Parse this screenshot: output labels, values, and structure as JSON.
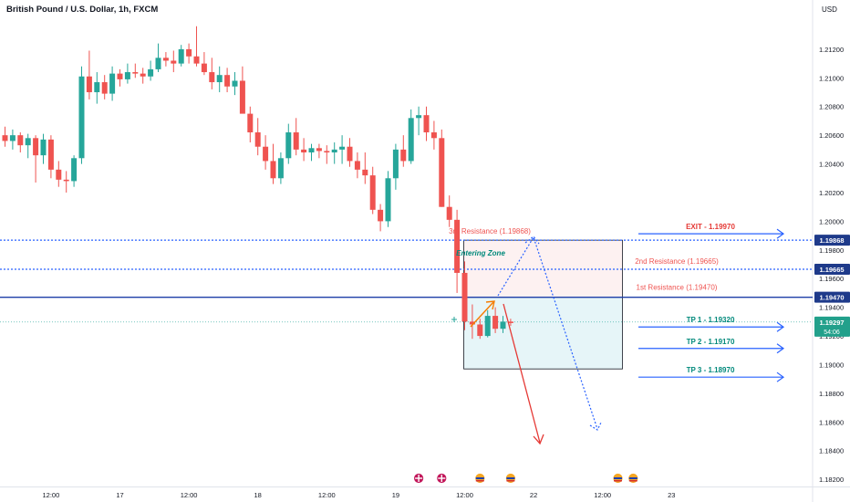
{
  "header": {
    "title": "British Pound / U.S. Dollar, 1h, FXCM",
    "currency": "USD"
  },
  "chart_data": {
    "type": "candlestick",
    "symbol": "British Pound / U.S. Dollar",
    "interval": "1h",
    "source": "FXCM",
    "ylim": [
      1.1815,
      1.214
    ],
    "y_ticks": [
      "1.21200",
      "1.21000",
      "1.20800",
      "1.20600",
      "1.20400",
      "1.20200",
      "1.20000",
      "1.19800",
      "1.19600",
      "1.19400",
      "1.19200",
      "1.19000",
      "1.18800",
      "1.18600",
      "1.18400",
      "1.18200"
    ],
    "x_ticks": [
      {
        "label": "12:00",
        "bar": 6
      },
      {
        "label": "17",
        "bar": 15
      },
      {
        "label": "12:00",
        "bar": 24
      },
      {
        "label": "18",
        "bar": 33
      },
      {
        "label": "12:00",
        "bar": 42
      },
      {
        "label": "19",
        "bar": 51
      },
      {
        "label": "12:00",
        "bar": 60
      },
      {
        "label": "22",
        "bar": 69
      },
      {
        "label": "12:00",
        "bar": 78
      },
      {
        "label": "23",
        "bar": 87
      }
    ],
    "candles": [
      [
        1.206,
        1.2066,
        1.2052,
        1.2056
      ],
      [
        1.2056,
        1.2064,
        1.205,
        1.206
      ],
      [
        1.206,
        1.2062,
        1.2048,
        1.2053
      ],
      [
        1.2053,
        1.2061,
        1.2044,
        1.2058
      ],
      [
        1.2058,
        1.206,
        1.2027,
        1.2046
      ],
      [
        1.2046,
        1.2061,
        1.204,
        1.2057
      ],
      [
        1.2057,
        1.206,
        1.203,
        1.2036
      ],
      [
        1.2036,
        1.2042,
        1.2024,
        1.2029
      ],
      [
        1.2029,
        1.2035,
        1.202,
        1.2028
      ],
      [
        1.2028,
        1.2046,
        1.2024,
        1.2044
      ],
      [
        1.2044,
        1.2108,
        1.204,
        1.2101
      ],
      [
        1.2101,
        1.2119,
        1.2085,
        1.209
      ],
      [
        1.209,
        1.2104,
        1.2082,
        1.2097
      ],
      [
        1.2097,
        1.2102,
        1.2085,
        1.2089
      ],
      [
        1.2089,
        1.2108,
        1.2084,
        1.2103
      ],
      [
        1.2103,
        1.2106,
        1.2094,
        1.2099
      ],
      [
        1.2099,
        1.211,
        1.2096,
        1.2104
      ],
      [
        1.2104,
        1.211,
        1.21,
        1.2103
      ],
      [
        1.2103,
        1.2107,
        1.2096,
        1.2101
      ],
      [
        1.2101,
        1.2112,
        1.2098,
        1.2106
      ],
      [
        1.2106,
        1.2124,
        1.2104,
        1.2114
      ],
      [
        1.2114,
        1.2118,
        1.2108,
        1.2112
      ],
      [
        1.2112,
        1.2119,
        1.2104,
        1.211
      ],
      [
        1.211,
        1.2123,
        1.2108,
        1.212
      ],
      [
        1.212,
        1.2124,
        1.211,
        1.2115
      ],
      [
        1.2115,
        1.2136,
        1.2108,
        1.211
      ],
      [
        1.211,
        1.2118,
        1.2102,
        1.2104
      ],
      [
        1.2104,
        1.2114,
        1.2092,
        1.2097
      ],
      [
        1.2097,
        1.2108,
        1.209,
        1.2102
      ],
      [
        1.2102,
        1.2107,
        1.209,
        1.2094
      ],
      [
        1.2094,
        1.2104,
        1.2088,
        1.2098
      ],
      [
        1.2098,
        1.2108,
        1.2076,
        1.2075
      ],
      [
        1.2075,
        1.208,
        1.2055,
        1.2062
      ],
      [
        1.2062,
        1.2072,
        1.2046,
        1.2052
      ],
      [
        1.2052,
        1.206,
        1.2036,
        1.2042
      ],
      [
        1.2042,
        1.2054,
        1.2026,
        1.203
      ],
      [
        1.203,
        1.2048,
        1.2026,
        1.2044
      ],
      [
        1.2044,
        1.2068,
        1.204,
        1.2062
      ],
      [
        1.2062,
        1.2072,
        1.2046,
        1.205
      ],
      [
        1.205,
        1.2058,
        1.2042,
        1.2048
      ],
      [
        1.2048,
        1.2054,
        1.2042,
        1.2051
      ],
      [
        1.2051,
        1.2054,
        1.2044,
        1.2049
      ],
      [
        1.2049,
        1.2053,
        1.204,
        1.2048
      ],
      [
        1.2048,
        1.2055,
        1.204,
        1.205
      ],
      [
        1.205,
        1.206,
        1.204,
        1.2052
      ],
      [
        1.2052,
        1.2058,
        1.2038,
        1.2042
      ],
      [
        1.2042,
        1.2048,
        1.203,
        1.2036
      ],
      [
        1.2036,
        1.2048,
        1.2026,
        1.2032
      ],
      [
        1.2032,
        1.2038,
        1.2005,
        1.2008
      ],
      [
        1.2008,
        1.2012,
        1.1993,
        1.2
      ],
      [
        1.2,
        1.2035,
        1.1996,
        1.203
      ],
      [
        1.203,
        1.2054,
        1.2022,
        1.205
      ],
      [
        1.205,
        1.206,
        1.2038,
        1.2042
      ],
      [
        1.2042,
        1.2078,
        1.204,
        1.2072
      ],
      [
        1.2072,
        1.208,
        1.206,
        1.2074
      ],
      [
        1.2074,
        1.208,
        1.2056,
        1.2062
      ],
      [
        1.2062,
        1.207,
        1.205,
        1.2058
      ],
      [
        1.2058,
        1.2064,
        1.201,
        1.201
      ],
      [
        1.201,
        1.2018,
        1.1996,
        1.2001
      ],
      [
        1.2001,
        1.2008,
        1.195,
        1.1964
      ],
      [
        1.1964,
        1.1972,
        1.1924,
        1.193
      ],
      [
        1.193,
        1.1942,
        1.1918,
        1.1928
      ],
      [
        1.1928,
        1.1932,
        1.1918,
        1.192
      ],
      [
        1.192,
        1.1938,
        1.1919,
        1.1934
      ],
      [
        1.1934,
        1.194,
        1.1922,
        1.1925
      ],
      [
        1.1925,
        1.1934,
        1.1922,
        1.193
      ],
      [
        1.193,
        1.1932,
        1.1927,
        1.1929
      ]
    ],
    "levels": [
      {
        "name": "1.19868",
        "value": 1.19868,
        "style": "dotted"
      },
      {
        "name": "1.19665",
        "value": 1.19665,
        "style": "dotted"
      },
      {
        "name": "1.19470",
        "value": 1.1947,
        "style": "solid"
      },
      {
        "name": "1.19297",
        "value": 1.19297,
        "style": "current"
      }
    ],
    "axis_badges": {
      "r3": "1.19868",
      "r2": "1.19665",
      "r1": "1.19470",
      "current": "1.19297",
      "countdown": "54:06"
    },
    "zones": {
      "sell_top": 1.19868,
      "sell_bottom": 1.1947,
      "buy_bottom": 1.1897
    },
    "annotations": {
      "r3": "3rd Resistance (1.19868)",
      "r2": "2nd Resistance (1.19665)",
      "r1": "1st Resistance (1.19470)",
      "zone": "Entering Zone",
      "exit": "EXIT - 1.19970",
      "tp1": "TP 1 - 1.19320",
      "tp2": "TP 2 - 1.19170",
      "tp3": "TP 3 - 1.18970"
    },
    "annotation_values": {
      "exit": 1.1997,
      "tp1": 1.1932,
      "tp2": 1.1917,
      "tp3": 1.1897
    },
    "colors": {
      "up": "#26a69a",
      "down": "#ef5350",
      "level_dotted": "#2962ff",
      "level_solid": "#1e3fa8",
      "current": "#26a69a",
      "sell_zone_fill": "#fdf1f1",
      "buy_zone_fill": "#e6f5f8",
      "resistance_text": "#ef5350",
      "exit_text": "#e53935",
      "tp_text": "#00897b",
      "zone_text": "#00897b",
      "arrow_blue": "#2962ff",
      "arrow_orange": "#f57c00",
      "arrow_red": "#e53935"
    },
    "event_icons": [
      {
        "name": "uk-flag-icon",
        "bar": 54
      },
      {
        "name": "uk-flag-icon",
        "bar": 57
      },
      {
        "name": "us-flag-icon",
        "bar": 62
      },
      {
        "name": "us-flag-icon",
        "bar": 66
      },
      {
        "name": "us-flag-icon",
        "bar": 80
      },
      {
        "name": "us-flag-icon",
        "bar": 82
      }
    ]
  }
}
